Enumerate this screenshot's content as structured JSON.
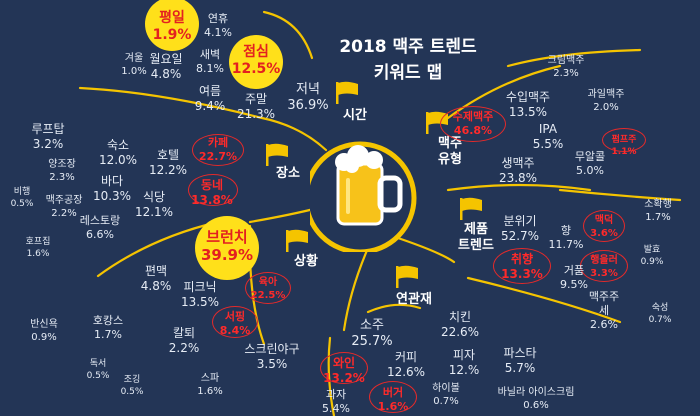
{
  "title": "2018 맥주 트렌드\n키워드 맵",
  "categories": {
    "time": "시간",
    "type": "맥주\n유형",
    "place": "장소",
    "product": "제품\n트렌드",
    "situation": "상황",
    "related": "연관재"
  },
  "keywords": [
    {
      "id": "pyeongil",
      "name": "평일",
      "value": "1.9%",
      "style": "big"
    },
    {
      "id": "yeonhyu",
      "name": "연휴",
      "value": "4.1%",
      "style": "plain"
    },
    {
      "id": "gyeoul",
      "name": "겨울",
      "value": "1.0%",
      "style": "plain"
    },
    {
      "id": "wolyoil",
      "name": "월요일",
      "value": "4.8%",
      "style": "plain"
    },
    {
      "id": "saebyeok",
      "name": "새벽",
      "value": "8.1%",
      "style": "plain"
    },
    {
      "id": "jeomsim",
      "name": "점심",
      "value": "12.5%",
      "style": "big"
    },
    {
      "id": "yeoreum",
      "name": "여름",
      "value": "9.4%",
      "style": "plain"
    },
    {
      "id": "jumal",
      "name": "주말",
      "value": "21.3%",
      "style": "plain"
    },
    {
      "id": "jeonyeok",
      "name": "저녁",
      "value": "36.9%",
      "style": "plain"
    },
    {
      "id": "cream",
      "name": "크림맥주",
      "value": "2.3%",
      "style": "plain"
    },
    {
      "id": "import",
      "name": "수입맥주",
      "value": "13.5%",
      "style": "plain"
    },
    {
      "id": "fruit",
      "name": "과일맥주",
      "value": "2.0%",
      "style": "plain"
    },
    {
      "id": "craft",
      "name": "수제맥주",
      "value": "46.8%",
      "style": "red"
    },
    {
      "id": "ipa",
      "name": "IPA",
      "value": "5.5%",
      "style": "plain"
    },
    {
      "id": "sour",
      "name": "펌프주",
      "value": "1.1%",
      "style": "red"
    },
    {
      "id": "nonalc",
      "name": "무알콜",
      "value": "5.0%",
      "style": "plain"
    },
    {
      "id": "draft",
      "name": "생맥주",
      "value": "23.8%",
      "style": "plain"
    },
    {
      "id": "rooftop",
      "name": "루프탑",
      "value": "3.2%",
      "style": "plain"
    },
    {
      "id": "sukso",
      "name": "숙소",
      "value": "12.0%",
      "style": "plain"
    },
    {
      "id": "hotel",
      "name": "호텔",
      "value": "12.2%",
      "style": "plain"
    },
    {
      "id": "cafe",
      "name": "카페",
      "value": "22.7%",
      "style": "red"
    },
    {
      "id": "yangjojang",
      "name": "양조장",
      "value": "2.3%",
      "style": "plain"
    },
    {
      "id": "bada",
      "name": "바다",
      "value": "10.3%",
      "style": "plain"
    },
    {
      "id": "dongne",
      "name": "동네",
      "value": "13.8%",
      "style": "red"
    },
    {
      "id": "bihaeng",
      "name": "비행",
      "value": "0.5%",
      "style": "plain"
    },
    {
      "id": "factory",
      "name": "맥주공장",
      "value": "2.2%",
      "style": "plain"
    },
    {
      "id": "sikdang",
      "name": "식당",
      "value": "12.1%",
      "style": "plain"
    },
    {
      "id": "restaurant",
      "name": "레스토랑",
      "value": "6.6%",
      "style": "plain"
    },
    {
      "id": "hopub",
      "name": "호프집",
      "value": "1.6%",
      "style": "plain"
    },
    {
      "id": "sohwaksaeng",
      "name": "소확행",
      "value": "1.7%",
      "style": "plain"
    },
    {
      "id": "bunwigi",
      "name": "분위기",
      "value": "52.7%",
      "style": "plain"
    },
    {
      "id": "hyang",
      "name": "향",
      "value": "11.7%",
      "style": "plain"
    },
    {
      "id": "maekyeok",
      "name": "맥덕",
      "value": "3.6%",
      "style": "red"
    },
    {
      "id": "balhyo",
      "name": "발효",
      "value": "0.9%",
      "style": "plain"
    },
    {
      "id": "chwihyang",
      "name": "취향",
      "value": "13.3%",
      "style": "red"
    },
    {
      "id": "geopum",
      "name": "거품",
      "value": "9.5%",
      "style": "plain"
    },
    {
      "id": "haengbok",
      "name": "행을러",
      "value": "3.3%",
      "style": "red"
    },
    {
      "id": "jujuse",
      "name": "맥주주\n세",
      "value": "2.6%",
      "style": "plain"
    },
    {
      "id": "sukseong",
      "name": "숙성",
      "value": "0.7%",
      "style": "plain"
    },
    {
      "id": "brunch",
      "name": "브런치",
      "value": "39.9%",
      "style": "big"
    },
    {
      "id": "pyeonmaek",
      "name": "편맥",
      "value": "4.8%",
      "style": "plain"
    },
    {
      "id": "picnic",
      "name": "피크닉",
      "value": "13.5%",
      "style": "plain"
    },
    {
      "id": "yukah",
      "name": "육아",
      "value": "22.5%",
      "style": "red"
    },
    {
      "id": "bansinyok",
      "name": "반신욕",
      "value": "0.9%",
      "style": "plain"
    },
    {
      "id": "hocance",
      "name": "호캉스",
      "value": "1.7%",
      "style": "plain"
    },
    {
      "id": "kaltwae",
      "name": "칼퇴",
      "value": "2.2%",
      "style": "plain"
    },
    {
      "id": "seoping",
      "name": "서핑",
      "value": "8.4%",
      "style": "red"
    },
    {
      "id": "screenbaseball",
      "name": "스크린야구",
      "value": "3.5%",
      "style": "plain"
    },
    {
      "id": "doksaeo",
      "name": "독서",
      "value": "0.5%",
      "style": "plain"
    },
    {
      "id": "jogging",
      "name": "조깅",
      "value": "0.5%",
      "style": "plain"
    },
    {
      "id": "spa",
      "name": "스파",
      "value": "1.6%",
      "style": "plain"
    },
    {
      "id": "soju",
      "name": "소주",
      "value": "25.7%",
      "style": "plain"
    },
    {
      "id": "chicken",
      "name": "치킨",
      "value": "22.6%",
      "style": "plain"
    },
    {
      "id": "wine",
      "name": "와인",
      "value": "13.2%",
      "style": "red"
    },
    {
      "id": "coffee",
      "name": "커피",
      "value": "12.6%",
      "style": "plain"
    },
    {
      "id": "pizza",
      "name": "피자",
      "value": "12.%",
      "style": "plain"
    },
    {
      "id": "pasta",
      "name": "파스타",
      "value": "5.7%",
      "style": "plain"
    },
    {
      "id": "gwaja",
      "name": "과자",
      "value": "5.4%",
      "style": "plain"
    },
    {
      "id": "burger",
      "name": "버거",
      "value": "1.6%",
      "style": "red"
    },
    {
      "id": "highball",
      "name": "하이볼",
      "value": "0.7%",
      "style": "plain"
    },
    {
      "id": "vanilla",
      "name": "바닐라 아이스크림",
      "value": "0.6%",
      "style": "plain"
    }
  ],
  "colors": {
    "background": "#233556",
    "gold": "#f5c400",
    "red": "#e42a2a",
    "bubble": "#ffe01a",
    "text": "#e6ecf5"
  }
}
